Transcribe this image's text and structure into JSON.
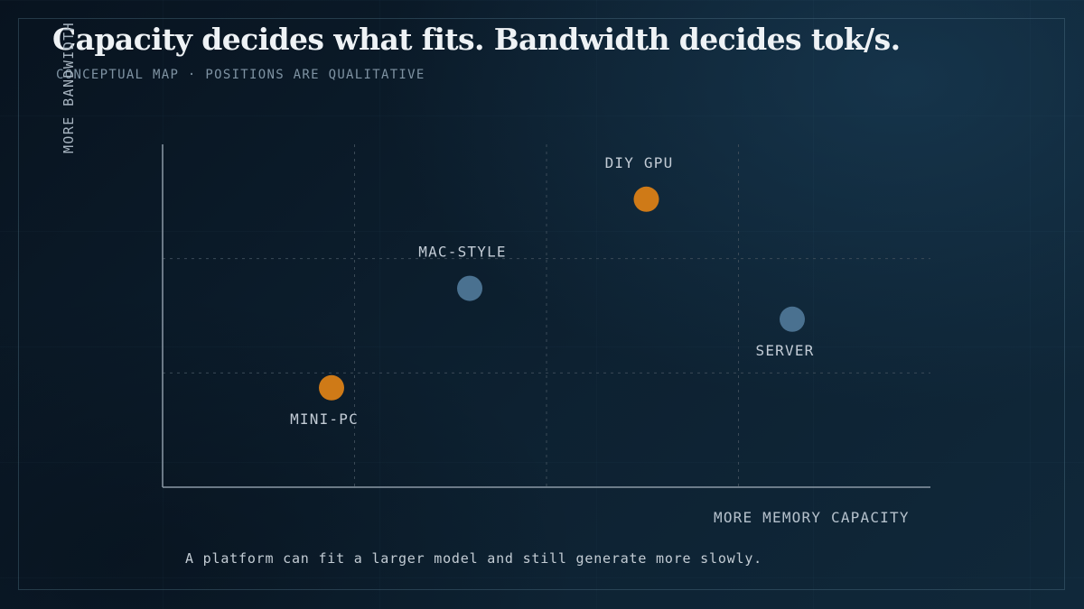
{
  "title": "Capacity decides what fits. Bandwidth decides tok/s.",
  "subtitle": "CONCEPTUAL MAP · POSITIONS ARE QUALITATIVE",
  "axes": {
    "x_label": "MORE MEMORY CAPACITY",
    "y_label": "MORE BANDWIDTH"
  },
  "footnote": "A platform can fit a larger model and still generate more slowly.",
  "colors": {
    "orange": "#cf7a17",
    "blue": "#4a7190",
    "axis": "#8b99a6",
    "grid": "#3b4a57"
  },
  "chart_data": {
    "type": "scatter",
    "x_range": [
      0,
      100
    ],
    "y_range": [
      0,
      100
    ],
    "grid": true,
    "points": [
      {
        "label": "DIY GPU",
        "x": 63,
        "y": 84,
        "color": "orange",
        "label_position": "above"
      },
      {
        "label": "MAC-STYLE",
        "x": 40,
        "y": 58,
        "color": "blue",
        "label_position": "above"
      },
      {
        "label": "SERVER",
        "x": 82,
        "y": 49,
        "color": "blue",
        "label_position": "below"
      },
      {
        "label": "MINI-PC",
        "x": 22,
        "y": 29,
        "color": "orange",
        "label_position": "below"
      }
    ]
  }
}
